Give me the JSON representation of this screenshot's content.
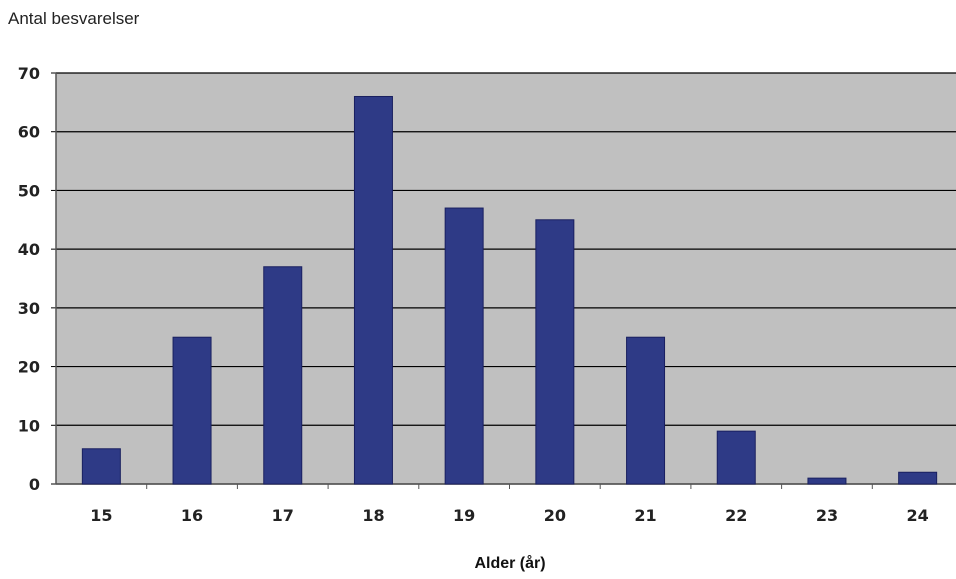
{
  "chart_data": {
    "type": "bar",
    "categories": [
      "15",
      "16",
      "17",
      "18",
      "19",
      "20",
      "21",
      "22",
      "23",
      "24"
    ],
    "values": [
      6,
      25,
      37,
      66,
      47,
      45,
      25,
      9,
      1,
      2
    ],
    "ylabel": "Antal besvarelser",
    "xlabel": "Alder (år)",
    "ylim": [
      0,
      70
    ],
    "yticks": [
      "0",
      "10",
      "20",
      "30",
      "40",
      "50",
      "60",
      "70"
    ],
    "grid": true,
    "legend": "none",
    "colors": {
      "bar": "#2e3a86",
      "bar_edge": "#1a2060",
      "plot_bg": "#c0c0c0",
      "grid": "#000000"
    }
  }
}
